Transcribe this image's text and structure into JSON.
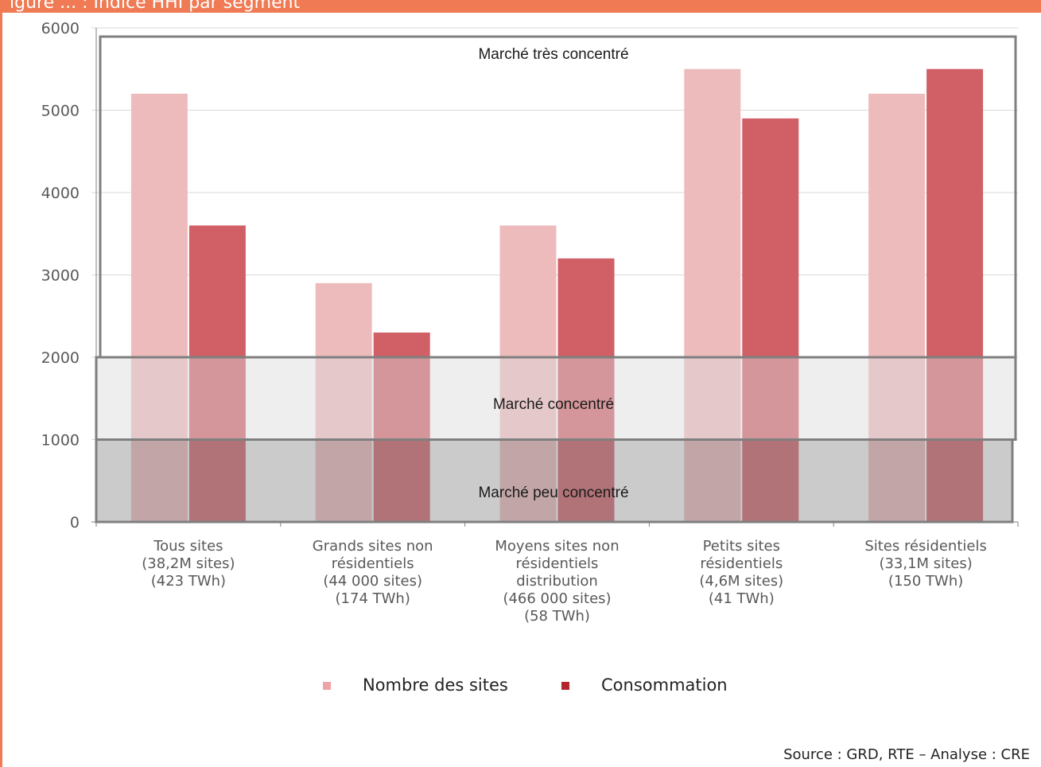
{
  "header": {
    "title_fragment": "igure ... : Indice HHI par segment"
  },
  "source": "Source : GRD, RTE – Analyse : CRE",
  "colors": {
    "header_bar": "#ef7a54",
    "series_sites": "#eebbbd",
    "series_consumption": "#d05f66",
    "zone_low": "#c8c8c8",
    "zone_mid": "#ededed",
    "zone_border": "#7f7f7f"
  },
  "chart_data": {
    "type": "bar",
    "categories": [
      [
        "Tous sites",
        "(38,2M sites)",
        "(423 TWh)"
      ],
      [
        "Grands sites non",
        "résidentiels",
        "(44 000 sites)",
        "(174 TWh)"
      ],
      [
        "Moyens sites non",
        "résidentiels",
        "distribution",
        "(466 000 sites)",
        "(58 TWh)"
      ],
      [
        "Petits sites",
        "résidentiels",
        "(4,6M sites)",
        "(41 TWh)"
      ],
      [
        "Sites résidentiels",
        "(33,1M sites)",
        "(150 TWh)"
      ]
    ],
    "series": [
      {
        "name": "Nombre des sites",
        "values": [
          5200,
          2900,
          3600,
          5500,
          5200
        ]
      },
      {
        "name": "Consommation",
        "values": [
          3600,
          2300,
          3200,
          4900,
          5500
        ]
      }
    ],
    "ylim": [
      0,
      6000
    ],
    "yticks": [
      "0",
      "1000",
      "2000",
      "3000",
      "4000",
      "5000",
      "6000"
    ],
    "zones": [
      {
        "label": "Marché peu concentré",
        "from": 0,
        "to": 1000
      },
      {
        "label": "Marché concentré",
        "from": 1000,
        "to": 2000
      },
      {
        "label": "Marché très concentré",
        "from": 2000,
        "to": 6000
      }
    ],
    "grid": true,
    "legend_position": "bottom"
  }
}
